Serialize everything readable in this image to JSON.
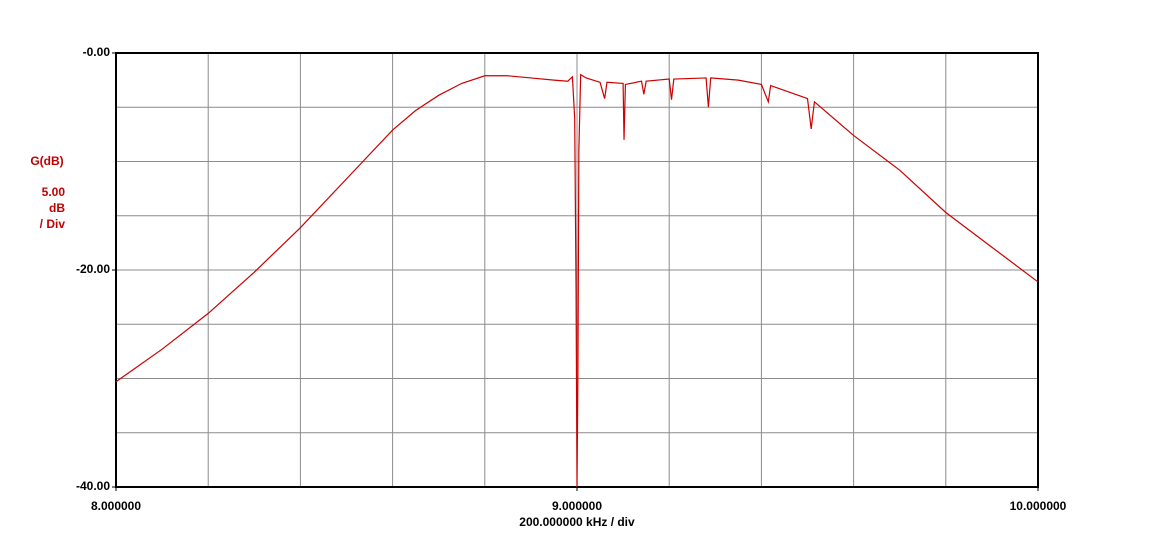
{
  "chart_data": {
    "type": "line",
    "y_label": "G(dB)",
    "y_scale_label": [
      "5.00",
      "dB",
      "/ Div"
    ],
    "x_label": "200.000000 kHz / div",
    "xlim": [
      8,
      10
    ],
    "ylim": [
      -40,
      0
    ],
    "xticks": [
      {
        "value": 8,
        "label": "8.000000"
      },
      {
        "value": 9,
        "label": "9.000000"
      },
      {
        "value": 10,
        "label": "10.000000"
      }
    ],
    "yticks": [
      {
        "value": 0,
        "label": "-0.00"
      },
      {
        "value": -20,
        "label": "-20.00"
      },
      {
        "value": -40,
        "label": "-40.00"
      }
    ],
    "xgrid": [
      8.2,
      8.4,
      8.6,
      8.8,
      9.0,
      9.2,
      9.4,
      9.6,
      9.8
    ],
    "ygrid": [
      -5,
      -10,
      -15,
      -20,
      -25,
      -30,
      -35
    ],
    "grid": true,
    "x": [
      8.0,
      8.1,
      8.2,
      8.3,
      8.4,
      8.5,
      8.6,
      8.65,
      8.7,
      8.75,
      8.8,
      8.85,
      8.9,
      8.95,
      8.98,
      8.99,
      8.995,
      8.998,
      9.0,
      9.002,
      9.004,
      9.008,
      9.02,
      9.05,
      9.06,
      9.065,
      9.1,
      9.102,
      9.105,
      9.14,
      9.145,
      9.15,
      9.2,
      9.205,
      9.21,
      9.28,
      9.285,
      9.29,
      9.35,
      9.4,
      9.415,
      9.42,
      9.5,
      9.508,
      9.515,
      9.6,
      9.7,
      9.8,
      9.9,
      10.0
    ],
    "series": [
      {
        "color": "#cc0000",
        "values": [
          -30.3,
          -27.3,
          -24.0,
          -20.2,
          -16.1,
          -11.6,
          -7.1,
          -5.3,
          -3.9,
          -2.8,
          -2.1,
          -2.1,
          -2.3,
          -2.5,
          -2.6,
          -2.2,
          -6,
          -22,
          -40,
          -29.5,
          -9,
          -2.0,
          -2.3,
          -2.7,
          -4.2,
          -2.7,
          -2.8,
          -8.0,
          -2.9,
          -2.6,
          -3.8,
          -2.6,
          -2.4,
          -4.3,
          -2.4,
          -2.3,
          -5.0,
          -2.3,
          -2.5,
          -2.9,
          -4.5,
          -3.0,
          -4.2,
          -7.0,
          -4.5,
          -7.6,
          -10.8,
          -14.7,
          -17.9,
          -21.1
        ]
      }
    ]
  }
}
